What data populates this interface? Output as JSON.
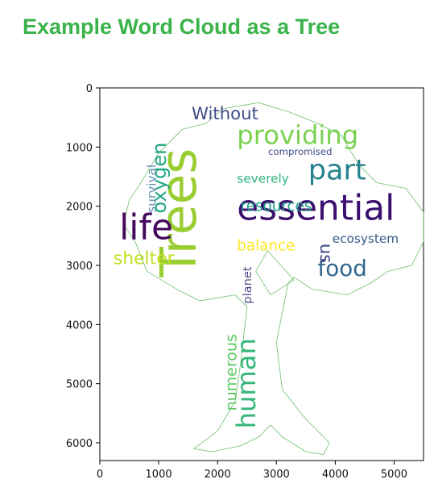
{
  "title": "Example Word Cloud as a Tree",
  "chart_data": {
    "type": "wordcloud",
    "title": "Example Word Cloud as a Tree",
    "xlabel": "",
    "ylabel": "",
    "xlim": [
      0,
      5500
    ],
    "ylim": [
      6300,
      0
    ],
    "x_ticks": [
      "0",
      "1000",
      "2000",
      "3000",
      "4000",
      "5000"
    ],
    "y_ticks": [
      "0",
      "1000",
      "2000",
      "3000",
      "4000",
      "5000",
      "6000"
    ],
    "grid": false,
    "mask_outline_color": "#6dbf6d",
    "words": [
      {
        "text": "Trees",
        "x": 1630,
        "y": 3200,
        "size": 840,
        "rotate": -90,
        "color": "#9acd32"
      },
      {
        "text": "essential",
        "x": 2330,
        "y": 2230,
        "size": 600,
        "rotate": 0,
        "color": "#3b0f70"
      },
      {
        "text": "life",
        "x": 330,
        "y": 2560,
        "size": 600,
        "rotate": 0,
        "color": "#46085c"
      },
      {
        "text": "part",
        "x": 3540,
        "y": 1550,
        "size": 480,
        "rotate": 0,
        "color": "#26828e"
      },
      {
        "text": "providing",
        "x": 2330,
        "y": 950,
        "size": 440,
        "rotate": 0,
        "color": "#7ad151"
      },
      {
        "text": "human",
        "x": 2640,
        "y": 5760,
        "size": 440,
        "rotate": -90,
        "color": "#35b779"
      },
      {
        "text": "food",
        "x": 3700,
        "y": 3180,
        "size": 380,
        "rotate": 0,
        "color": "#31688e"
      },
      {
        "text": "oxygen",
        "x": 1120,
        "y": 2120,
        "size": 330,
        "rotate": -90,
        "color": "#21a685"
      },
      {
        "text": "Without",
        "x": 1560,
        "y": 530,
        "size": 290,
        "rotate": 0,
        "color": "#3e4a89"
      },
      {
        "text": "shelter",
        "x": 230,
        "y": 2980,
        "size": 300,
        "rotate": 0,
        "color": "#c2df23"
      },
      {
        "text": "resources",
        "x": 2390,
        "y": 2080,
        "size": 250,
        "rotate": 0,
        "color": "#1f9e89"
      },
      {
        "text": "balance",
        "x": 2330,
        "y": 2750,
        "size": 250,
        "rotate": 0,
        "color": "#fde725"
      },
      {
        "text": "numerous",
        "x": 2320,
        "y": 5460,
        "size": 260,
        "rotate": -90,
        "color": "#5ec962"
      },
      {
        "text": "us",
        "x": 3750,
        "y": 2630,
        "size": 290,
        "rotate": 90,
        "color": "#414487"
      },
      {
        "text": "ecosystem",
        "x": 3950,
        "y": 2620,
        "size": 210,
        "rotate": 0,
        "color": "#365c8d"
      },
      {
        "text": "severely",
        "x": 2330,
        "y": 1600,
        "size": 210,
        "rotate": 0,
        "color": "#2db27d"
      },
      {
        "text": "compromised",
        "x": 2860,
        "y": 1130,
        "size": 160,
        "rotate": 0,
        "color": "#3e4a89"
      },
      {
        "text": "survival",
        "x": 950,
        "y": 2110,
        "size": 210,
        "rotate": -90,
        "color": "#5b8fae"
      },
      {
        "text": "planet",
        "x": 2570,
        "y": 3650,
        "size": 200,
        "rotate": -90,
        "color": "#4b4b86"
      }
    ]
  }
}
